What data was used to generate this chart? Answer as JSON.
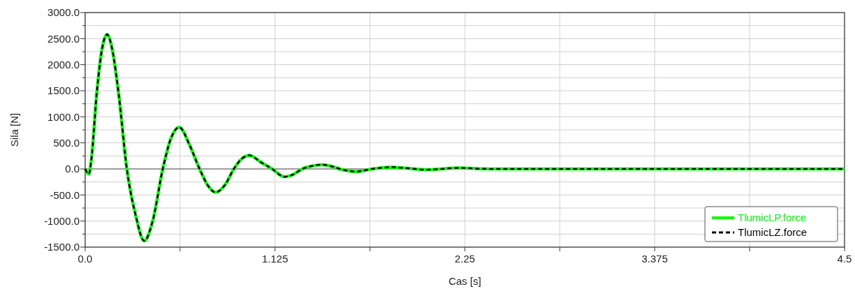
{
  "chart_data": {
    "type": "line",
    "xlabel": "Cas [s]",
    "ylabel": "Sila [N]",
    "x": [
      0,
      0.022,
      0.036,
      0.07,
      0.1,
      0.13,
      0.16,
      0.2,
      0.247,
      0.3,
      0.35,
      0.4,
      0.46,
      0.51,
      0.557,
      0.62,
      0.678,
      0.73,
      0.771,
      0.83,
      0.881,
      0.93,
      0.973,
      1.04,
      1.108,
      1.18,
      1.23,
      1.287,
      1.35,
      1.405,
      1.46,
      1.508,
      1.605,
      1.7,
      1.811,
      1.92,
      2.018,
      2.11,
      2.211,
      2.33,
      2.44,
      3.0,
      3.5,
      4.0,
      4.5
    ],
    "series": [
      {
        "name": "TlumicLP.force",
        "color": "#00ff00",
        "line_style": "solid",
        "values": [
          0,
          -100,
          160,
          1500,
          2300,
          2580,
          2300,
          1400,
          0,
          -900,
          -1380,
          -1000,
          0,
          600,
          800,
          450,
          0,
          -330,
          -450,
          -300,
          0,
          200,
          260,
          130,
          0,
          -150,
          -110,
          0,
          60,
          80,
          50,
          0,
          -50,
          0,
          35,
          10,
          -15,
          0,
          20,
          5,
          0,
          0,
          0,
          0,
          0
        ]
      },
      {
        "name": "TlumicLZ.force",
        "color": "#000000",
        "line_style": "dashed",
        "values": [
          0,
          -100,
          160,
          1500,
          2300,
          2580,
          2300,
          1400,
          0,
          -900,
          -1380,
          -1000,
          0,
          600,
          800,
          450,
          0,
          -330,
          -450,
          -300,
          0,
          200,
          260,
          130,
          0,
          -150,
          -110,
          0,
          60,
          80,
          50,
          0,
          -50,
          0,
          35,
          10,
          -15,
          0,
          20,
          5,
          0,
          0,
          0,
          0,
          0
        ]
      }
    ],
    "xlim": [
      0,
      4.5
    ],
    "xticks": [
      {
        "value": 0,
        "label": "0.0"
      },
      {
        "value": 0.5625,
        "label": null
      },
      1.125,
      {
        "value": 1.6875,
        "label": null
      },
      2.25,
      {
        "value": 2.8125,
        "label": null
      },
      3.375,
      {
        "value": 3.9375,
        "label": null
      },
      4.5
    ],
    "ylim": [
      -1500,
      3000
    ],
    "yticks": [
      {
        "value": -1500,
        "label": "-1500.0"
      },
      {
        "value": -1250,
        "label": null
      },
      {
        "value": -1000,
        "label": "-1000.0"
      },
      {
        "value": -750,
        "label": null
      },
      {
        "value": -500,
        "label": "-500.0"
      },
      {
        "value": -250,
        "label": null
      },
      {
        "value": 0,
        "label": "0.0"
      },
      {
        "value": 250,
        "label": null
      },
      {
        "value": 500,
        "label": "500.0"
      },
      {
        "value": 750,
        "label": null
      },
      {
        "value": 1000,
        "label": "1000.0"
      },
      {
        "value": 1250,
        "label": null
      },
      {
        "value": 1500,
        "label": "1500.0"
      },
      {
        "value": 1750,
        "label": null
      },
      {
        "value": 2000,
        "label": "2000.0"
      },
      {
        "value": 2250,
        "label": null
      },
      {
        "value": 2500,
        "label": "2500.0"
      },
      {
        "value": 2750,
        "label": null
      },
      {
        "value": 3000,
        "label": "3000.0"
      }
    ],
    "grid": true,
    "legend": "bottom right",
    "ref_lines": [
      {
        "axis": "y",
        "value": 0,
        "color": "#555555"
      }
    ]
  }
}
